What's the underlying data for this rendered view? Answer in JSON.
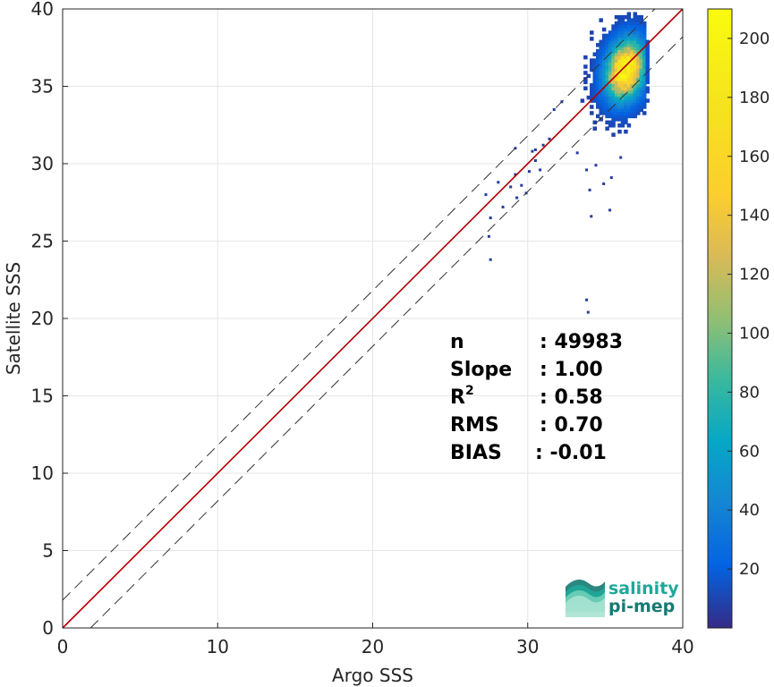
{
  "chart_data": {
    "type": "heatmap",
    "subtype": "density-scatter",
    "xlabel": "Argo SSS",
    "ylabel": "Satellite SSS",
    "xlim": [
      0,
      40
    ],
    "ylim": [
      0,
      40
    ],
    "xticks": [
      "0",
      "10",
      "20",
      "30",
      "40"
    ],
    "yticks": [
      "0",
      "5",
      "10",
      "15",
      "20",
      "25",
      "30",
      "35",
      "40"
    ],
    "grid": true,
    "reference_lines": [
      {
        "style": "solid",
        "color": "#b30000",
        "offset": 0
      },
      {
        "style": "dashed",
        "color": "#333333",
        "offset": 1.8
      },
      {
        "style": "dashed",
        "color": "#333333",
        "offset": -1.8
      }
    ],
    "density_core": {
      "x_center": 36.2,
      "y_center": 36.0,
      "x_spread": 0.8,
      "y_spread": 1.2
    },
    "outliers": [
      [
        27.3,
        28.0
      ],
      [
        27.6,
        26.5
      ],
      [
        27.5,
        25.3
      ],
      [
        27.6,
        23.8
      ],
      [
        28.1,
        28.8
      ],
      [
        28.4,
        27.2
      ],
      [
        28.9,
        28.5
      ],
      [
        29.2,
        29.3
      ],
      [
        29.3,
        27.8
      ],
      [
        29.6,
        28.6
      ],
      [
        29.9,
        28.1
      ],
      [
        30.1,
        29.5
      ],
      [
        30.3,
        30.8
      ],
      [
        30.5,
        30.2
      ],
      [
        31.0,
        31.2
      ],
      [
        30.8,
        29.6
      ],
      [
        31.4,
        31.6
      ],
      [
        29.2,
        31.0
      ],
      [
        30.5,
        30.9
      ],
      [
        33.8,
        21.2
      ],
      [
        33.9,
        20.4
      ],
      [
        34.1,
        26.6
      ],
      [
        35.3,
        27.0
      ],
      [
        34.0,
        28.3
      ],
      [
        33.8,
        29.6
      ],
      [
        34.4,
        29.9
      ],
      [
        36.0,
        30.4
      ],
      [
        35.4,
        29.1
      ],
      [
        34.9,
        28.7
      ],
      [
        33.2,
        30.7
      ],
      [
        31.7,
        33.5
      ],
      [
        32.2,
        34.0
      ]
    ],
    "colorbar": {
      "min": 0,
      "max": 210,
      "ticks": [
        "20",
        "40",
        "60",
        "80",
        "100",
        "120",
        "140",
        "160",
        "180",
        "200"
      ],
      "colormap": "parula"
    },
    "stats": [
      {
        "label": "n",
        "sup": "",
        "value": ": 49983"
      },
      {
        "label": "Slope",
        "sup": "",
        "value": ": 1.00"
      },
      {
        "label": "R",
        "sup": "2",
        "value": ": 0.58"
      },
      {
        "label": "RMS",
        "sup": "",
        "value": ": 0.70"
      },
      {
        "label": "BIAS",
        "sup": "",
        "value": ": -0.01"
      }
    ]
  },
  "logo": {
    "line1": "salinity",
    "line2": "pi-mep",
    "color": "#1fa89a",
    "color_dark": "#157a72"
  }
}
